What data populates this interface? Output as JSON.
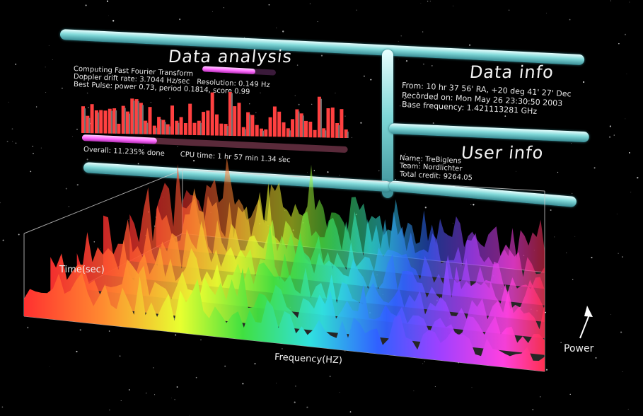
{
  "data_analysis": {
    "title": "Data analysis",
    "line1_label": "Computing Fast Fourier Transform",
    "line2_rate": "Doppler drift rate: 3.7044 Hz/sec",
    "line2_resolution": "Resolution: 0.149 Hz",
    "line3": "Best Pulse: power 0.73, period 0.1814, score 0.99",
    "overall_label": "Overall: 11.235% done",
    "cpu_time": "CPU time: 1 hr 57 min 1.34 sec",
    "fft_progress": 0.72,
    "overall_progress": 0.11235
  },
  "data_info": {
    "title": "Data info",
    "from": "From: 10 hr 37 56' RA, +20 deg 41' 27' Dec",
    "recorded": "Recorded on: Mon May 26 23:30:50 2003",
    "base_frequency": "Base frequency: 1.421113281 GHz"
  },
  "user_info": {
    "title": "User info",
    "name": "Name: TreBiglens",
    "team": "Team: Nordlichter",
    "total_credit": "Total credit: 9264.05"
  },
  "graph": {
    "time_label": "Time(sec)",
    "frequency_label": "Frequency(HZ)",
    "power_label": "Power"
  },
  "colors": {
    "pipe": "#8fe0e0",
    "progress_fill": "#ff6cff",
    "spectrum_bars": "#ff4040"
  }
}
